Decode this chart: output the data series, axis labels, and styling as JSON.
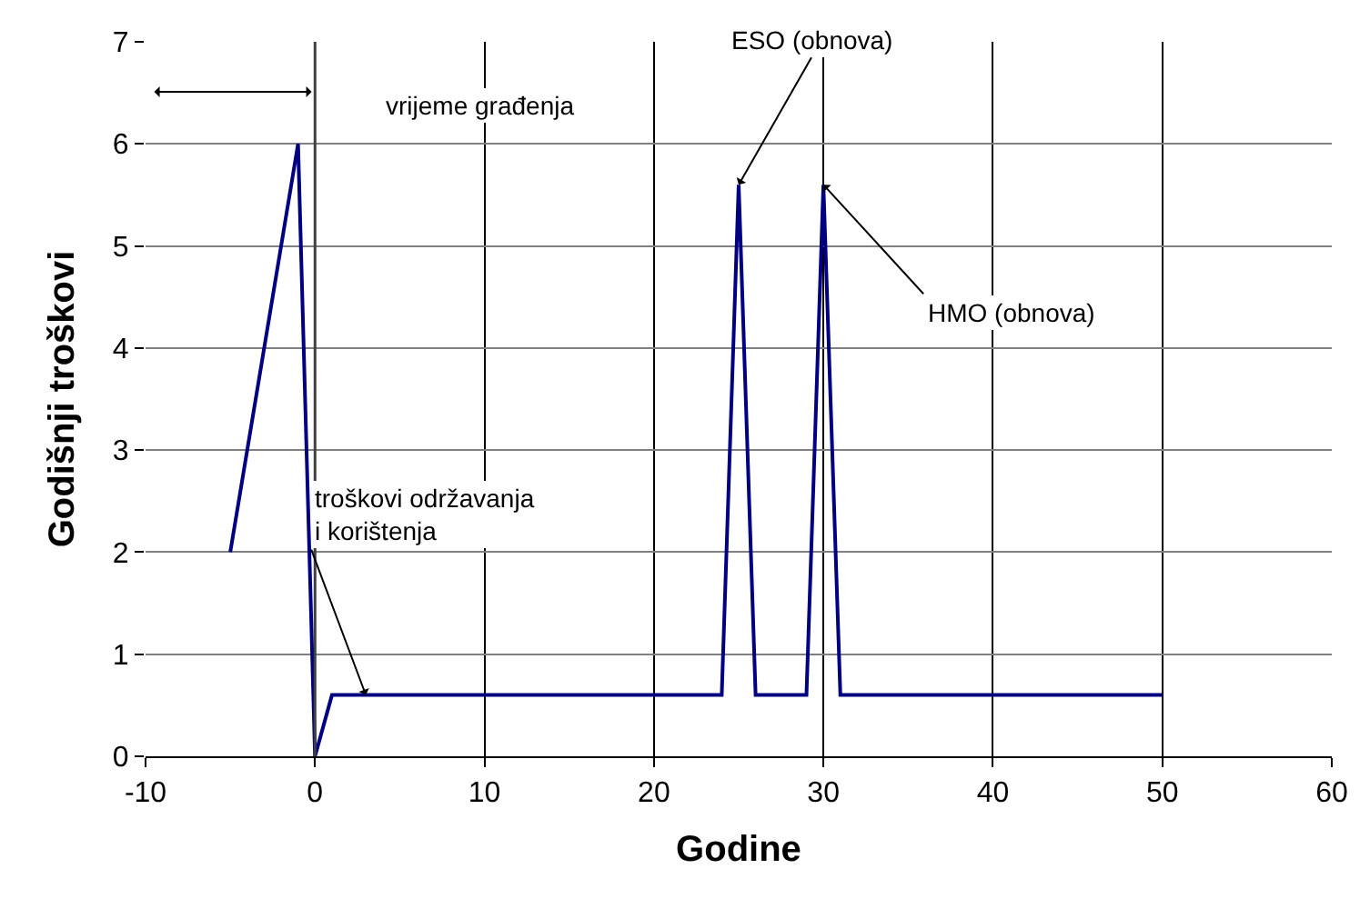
{
  "chart_data": {
    "type": "line",
    "xlabel": "Godine",
    "ylabel": "Godišnji troškovi",
    "x": [
      -5,
      -1,
      0,
      1,
      24,
      25,
      26,
      29,
      30,
      31,
      50
    ],
    "series": [
      {
        "color": "#000080",
        "values": [
          2,
          6,
          0,
          0.6,
          0.6,
          5.6,
          0.6,
          0.6,
          5.6,
          0.6,
          0.6
        ]
      }
    ],
    "xlim": [
      -10,
      60
    ],
    "xticks": [
      -10,
      0,
      10,
      20,
      30,
      40,
      50,
      60
    ],
    "ylim": [
      0,
      7
    ],
    "yticks": [
      0,
      1,
      2,
      3,
      4,
      5,
      6,
      7
    ],
    "grid": true,
    "marker": "none",
    "line_style": "solid",
    "annotations": [
      "vrijeme građenja",
      {
        "text": "troškovi održavanja\ni korištenja",
        "x": 3,
        "y": 0.6
      },
      {
        "text": "ESO (obnova)",
        "x": 25,
        "y": 5.6
      },
      {
        "text": "HMO (obnova)",
        "x": 30,
        "y": 5.6
      }
    ]
  }
}
